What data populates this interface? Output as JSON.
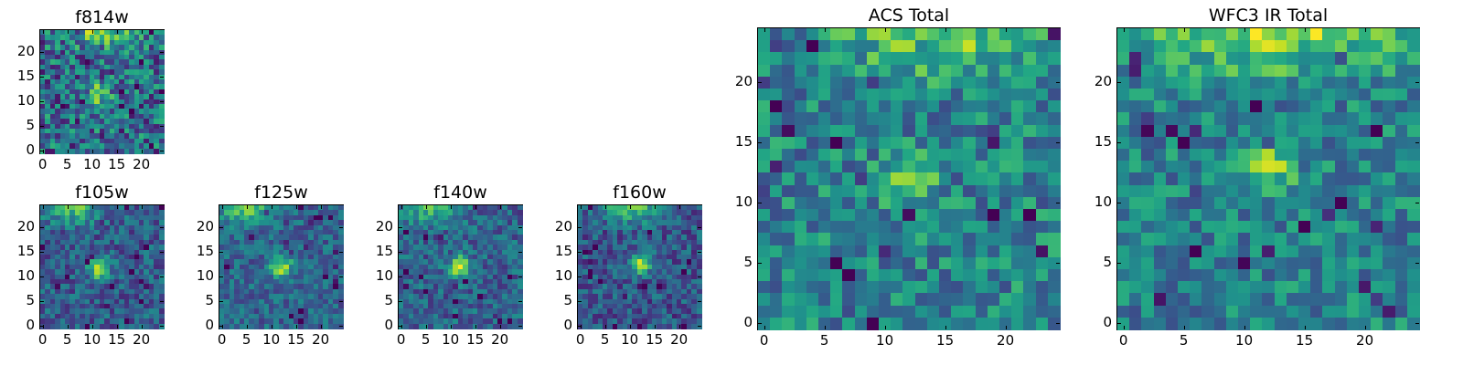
{
  "figure": {
    "description_colormap": "viridis"
  },
  "chart_data": [
    {
      "type": "heatmap",
      "title": "f814w",
      "grid": 25,
      "xticks": [
        "0",
        "5",
        "10",
        "15",
        "20"
      ],
      "yticks": [
        "0",
        "5",
        "10",
        "15",
        "20"
      ],
      "xlim": [
        0,
        25
      ],
      "ylim": [
        0,
        25
      ],
      "blob": {
        "x": 11.5,
        "y": 11.5,
        "strength": 0.45,
        "width": 1.4
      },
      "top_glow": {
        "x": 12,
        "strength": 0.35,
        "width": 5
      },
      "noise": 0.3,
      "base": 0.35,
      "seed": 1
    },
    {
      "type": "heatmap",
      "title": "f105w",
      "grid": 25,
      "xticks": [
        "0",
        "5",
        "10",
        "15",
        "20"
      ],
      "yticks": [
        "0",
        "5",
        "10",
        "15",
        "20"
      ],
      "xlim": [
        0,
        25
      ],
      "ylim": [
        0,
        25
      ],
      "blob": {
        "x": 11.5,
        "y": 11.5,
        "strength": 0.55,
        "width": 1.5
      },
      "top_glow": {
        "x": 6,
        "strength": 0.45,
        "width": 4
      },
      "noise": 0.18,
      "base": 0.3,
      "seed": 2
    },
    {
      "type": "heatmap",
      "title": "f125w",
      "grid": 25,
      "xticks": [
        "0",
        "5",
        "10",
        "15",
        "20"
      ],
      "yticks": [
        "0",
        "5",
        "10",
        "15",
        "20"
      ],
      "xlim": [
        0,
        25
      ],
      "ylim": [
        0,
        25
      ],
      "blob": {
        "x": 12,
        "y": 12,
        "strength": 0.55,
        "width": 1.5
      },
      "top_glow": {
        "x": 5,
        "strength": 0.45,
        "width": 4
      },
      "noise": 0.16,
      "base": 0.33,
      "seed": 3
    },
    {
      "type": "heatmap",
      "title": "f140w",
      "grid": 25,
      "xticks": [
        "0",
        "5",
        "10",
        "15",
        "20"
      ],
      "yticks": [
        "0",
        "5",
        "10",
        "15",
        "20"
      ],
      "xlim": [
        0,
        25
      ],
      "ylim": [
        0,
        25
      ],
      "blob": {
        "x": 12,
        "y": 12,
        "strength": 0.55,
        "width": 1.6
      },
      "top_glow": {
        "x": 6,
        "strength": 0.4,
        "width": 4
      },
      "noise": 0.18,
      "base": 0.32,
      "seed": 4
    },
    {
      "type": "heatmap",
      "title": "f160w",
      "grid": 25,
      "xticks": [
        "0",
        "5",
        "10",
        "15",
        "20"
      ],
      "yticks": [
        "0",
        "5",
        "10",
        "15",
        "20"
      ],
      "xlim": [
        0,
        25
      ],
      "ylim": [
        0,
        25
      ],
      "blob": {
        "x": 12,
        "y": 12.5,
        "strength": 0.55,
        "width": 1.5
      },
      "top_glow": {
        "x": 10,
        "strength": 0.45,
        "width": 4
      },
      "noise": 0.18,
      "base": 0.28,
      "seed": 5
    },
    {
      "type": "heatmap",
      "title": "ACS Total",
      "grid": 25,
      "xticks": [
        "0",
        "5",
        "10",
        "15",
        "20"
      ],
      "yticks": [
        "0",
        "5",
        "10",
        "15",
        "20"
      ],
      "xlim": [
        0,
        25
      ],
      "ylim": [
        0,
        25
      ],
      "blob": {
        "x": 12,
        "y": 12,
        "strength": 0.4,
        "width": 1.4
      },
      "top_glow": {
        "x": 15,
        "strength": 0.35,
        "width": 6
      },
      "noise": 0.22,
      "base": 0.45,
      "seed": 6
    },
    {
      "type": "heatmap",
      "title": "WFC3 IR Total",
      "grid": 25,
      "xticks": [
        "0",
        "5",
        "10",
        "15",
        "20"
      ],
      "yticks": [
        "0",
        "5",
        "10",
        "15",
        "20"
      ],
      "xlim": [
        0,
        25
      ],
      "ylim": [
        0,
        25
      ],
      "blob": {
        "x": 12,
        "y": 13,
        "strength": 0.4,
        "width": 1.5
      },
      "top_glow": {
        "x": 12,
        "strength": 0.4,
        "width": 8
      },
      "noise": 0.2,
      "base": 0.45,
      "seed": 7
    }
  ]
}
